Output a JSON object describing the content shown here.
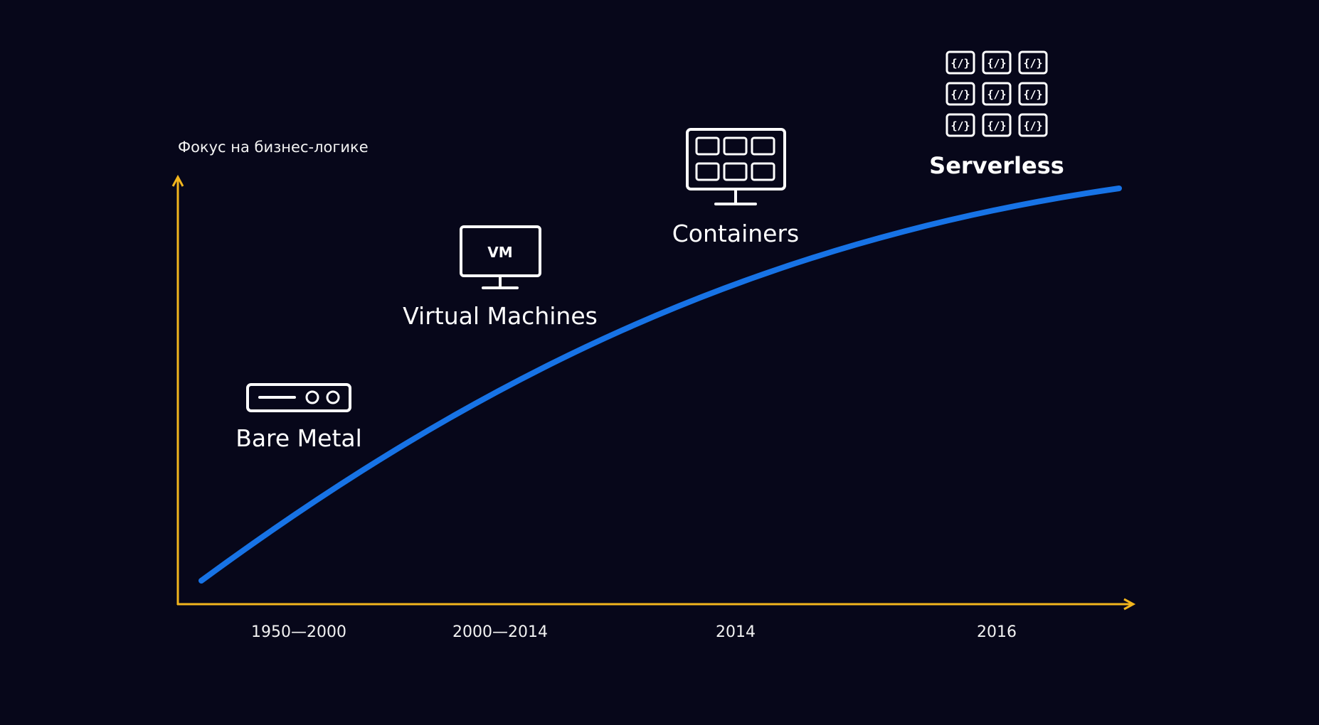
{
  "axes": {
    "y_title": "Фокус на бизнес-логике",
    "color": "#f2b51d"
  },
  "curve_color": "#1773e6",
  "timeline": [
    {
      "period": "1950—2000",
      "label": "Bare Metal",
      "icon": "server-rack-icon"
    },
    {
      "period": "2000—2014",
      "label": "Virtual Machines",
      "icon": "vm-monitor-icon",
      "icon_text": "VM"
    },
    {
      "period": "2014",
      "label": "Containers",
      "icon": "containers-monitor-icon"
    },
    {
      "period": "2016",
      "label": "Serverless",
      "icon": "functions-grid-icon",
      "icon_text": "{/}"
    }
  ]
}
